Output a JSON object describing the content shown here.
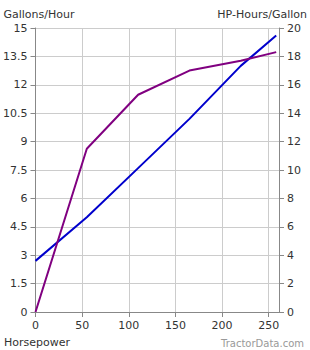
{
  "chart_data": {
    "type": "line",
    "x_label": "Horsepower",
    "y_label": "Gallons/Hour",
    "y2_label": "HP-Hours/Gallon",
    "watermark": "TractorData.com",
    "grid": true,
    "xlim": [
      0,
      261
    ],
    "xticks": [
      0,
      50,
      100,
      150,
      200,
      250
    ],
    "ylim": [
      0,
      15
    ],
    "yticks": [
      0,
      1.5,
      3,
      4.5,
      6,
      7.5,
      9,
      10.5,
      12,
      13.5,
      15
    ],
    "y2lim": [
      0,
      20
    ],
    "y2ticks": [
      0,
      2,
      4,
      6,
      8,
      10,
      12,
      14,
      16,
      18,
      20
    ],
    "series": [
      {
        "color": "#0000cc",
        "axis": "y",
        "x": [
          0,
          55,
          110,
          165,
          220,
          258
        ],
        "values": [
          2.7,
          5.0,
          7.6,
          10.2,
          13.0,
          14.6
        ]
      },
      {
        "color": "#800080",
        "axis": "y2",
        "x": [
          0,
          55,
          110,
          165,
          220,
          258
        ],
        "values": [
          0,
          11.5,
          15.3,
          17.0,
          17.7,
          18.3
        ]
      }
    ]
  }
}
